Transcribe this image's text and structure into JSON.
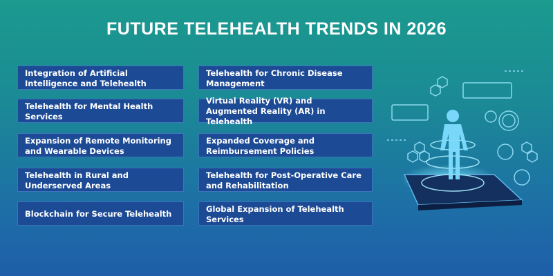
{
  "title": "FUTURE TELEHEALTH TRENDS IN 2026",
  "columns": [
    {
      "items": [
        "Integration of Artificial Intelligence and Telehealth",
        "Telehealth for Mental Health Services",
        "Expansion of Remote Monitoring and Wearable Devices",
        "Telehealth in Rural and Underserved Areas",
        "Blockchain for Secure Telehealth"
      ]
    },
    {
      "items": [
        "Telehealth for Chronic Disease Management",
        "Virtual Reality (VR) and Augmented Reality (AR) in Telehealth",
        "Expanded Coverage and Reimbursement Policies",
        "Telehealth for Post-Operative Care and Rehabilitation",
        "Global Expansion of Telehealth Services"
      ]
    }
  ]
}
